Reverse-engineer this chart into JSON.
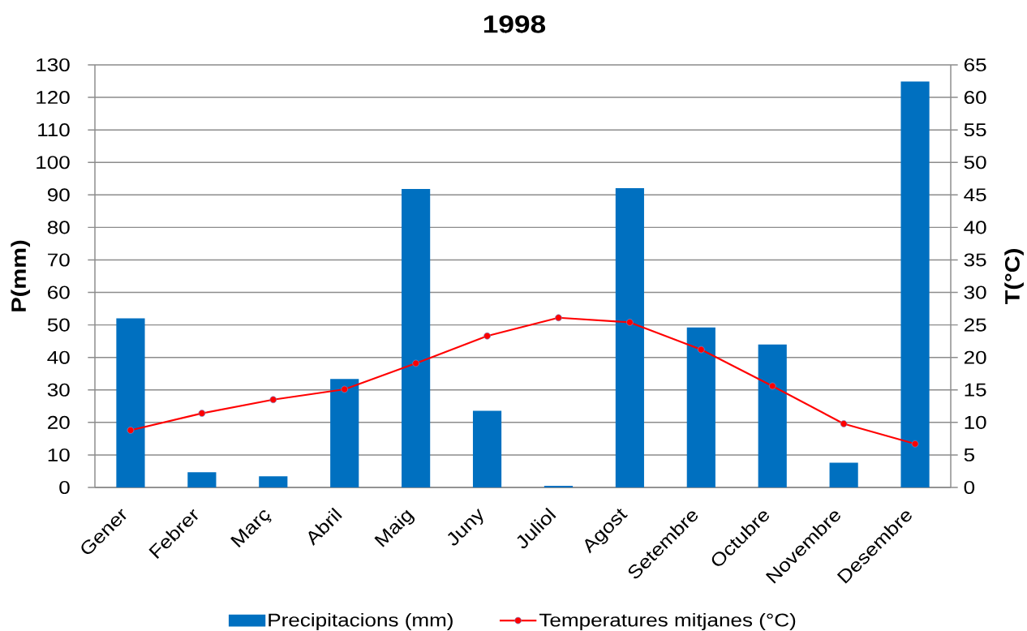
{
  "chart_data": {
    "type": "bar",
    "title": "1998",
    "ylabel": "P(mm)",
    "y2label": "T(°C)",
    "categories": [
      "Gener",
      "Febrer",
      "Març",
      "Abril",
      "Maig",
      "Juny",
      "Juliol",
      "Agost",
      "Setembre",
      "Octubre",
      "Novembre",
      "Desembre"
    ],
    "series": [
      {
        "name": "Precipitacions (mm)",
        "color": "#0070c0",
        "values": [
          52,
          4.7,
          3.4,
          33.4,
          91.8,
          23.6,
          0.5,
          92.1,
          49.2,
          44,
          7.6,
          124.9
        ]
      },
      {
        "name": "Temperatures mitjanes (°C)",
        "type": "line",
        "axis": "y2",
        "color": "#ff0000",
        "marker": "circle",
        "values": [
          8.8,
          11.4,
          13.5,
          15.1,
          19.1,
          23.3,
          26.1,
          25.4,
          21.2,
          15.6,
          9.8,
          6.7
        ]
      }
    ],
    "ylim": [
      0,
      130
    ],
    "yticks": [
      0,
      10,
      20,
      30,
      40,
      50,
      60,
      70,
      80,
      90,
      100,
      110,
      120,
      130
    ],
    "y2lim": [
      0,
      65
    ],
    "y2ticks": [
      0,
      5,
      10,
      15,
      20,
      25,
      30,
      35,
      40,
      45,
      50,
      55,
      60,
      65
    ],
    "grid": "y",
    "legend": "bottom"
  }
}
